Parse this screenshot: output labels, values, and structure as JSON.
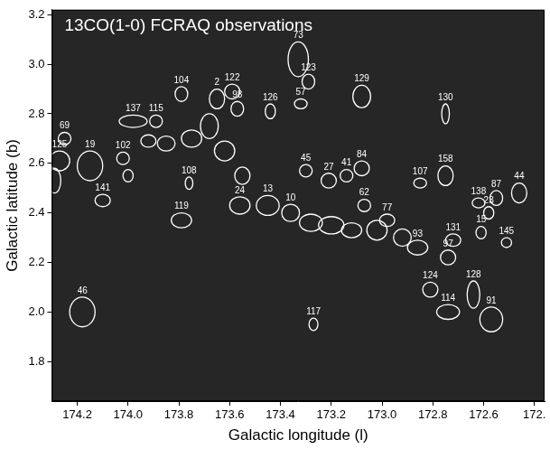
{
  "chart_data": {
    "type": "scatter",
    "title": "13CO(1-0) FCRAQ observations",
    "x_label": "Galactic longitude (l)",
    "y_label": "Galactic latitude (b)",
    "xlim": [
      174.3,
      172.36
    ],
    "xticks": [
      174.2,
      {
        "value": 174,
        "label": "174.0"
      },
      173.8,
      173.6,
      173.4,
      173.2,
      {
        "value": 173,
        "label": "173.0"
      },
      172.8,
      172.6,
      {
        "value": 172.4,
        "label": "172."
      }
    ],
    "ylim": [
      1.64,
      3.22
    ],
    "yticks": [
      1.8,
      {
        "value": 2,
        "label": "2.0"
      },
      2.2,
      2.4,
      2.6,
      2.8,
      {
        "value": 3,
        "label": "3.0"
      },
      3.2
    ],
    "grid": false,
    "marker": "ellipse",
    "color": "#ffffff",
    "points": [
      {
        "label": "46",
        "x": 174.18,
        "y": 2.0,
        "width": 0.1,
        "height": 0.12
      },
      {
        "label": "117",
        "x": 173.27,
        "y": 1.95,
        "width": 0.035,
        "height": 0.05
      },
      {
        "label": "114",
        "x": 172.74,
        "y": 2.0,
        "width": 0.09,
        "height": 0.06
      },
      {
        "label": "91",
        "x": 172.57,
        "y": 1.97,
        "width": 0.09,
        "height": 0.1
      },
      {
        "label": "128",
        "x": 172.64,
        "y": 2.07,
        "width": 0.05,
        "height": 0.11
      },
      {
        "label": "124",
        "x": 172.81,
        "y": 2.09,
        "width": 0.06,
        "height": 0.06
      },
      {
        "label": "145",
        "x": 172.51,
        "y": 2.28,
        "width": 0.04,
        "height": 0.04
      },
      {
        "label": "119",
        "x": 173.79,
        "y": 2.37,
        "width": 0.08,
        "height": 0.06
      },
      {
        "label": "141",
        "x": 174.1,
        "y": 2.45,
        "width": 0.06,
        "height": 0.05
      },
      {
        "label": "129",
        "x": 173.08,
        "y": 2.87,
        "width": 0.07,
        "height": 0.09
      },
      {
        "label": "130",
        "x": 172.75,
        "y": 2.8,
        "width": 0.03,
        "height": 0.08
      },
      {
        "label": "73",
        "x": 173.33,
        "y": 3.02,
        "width": 0.08,
        "height": 0.14
      },
      {
        "label": "123",
        "x": 173.29,
        "y": 2.93,
        "width": 0.05,
        "height": 0.06
      },
      {
        "label": "57",
        "x": 173.32,
        "y": 2.84,
        "width": 0.05,
        "height": 0.04
      },
      {
        "label": "126",
        "x": 173.44,
        "y": 2.81,
        "width": 0.04,
        "height": 0.06
      },
      {
        "label": "137",
        "x": 173.98,
        "y": 2.77,
        "width": 0.11,
        "height": 0.05
      },
      {
        "label": "115",
        "x": 173.89,
        "y": 2.77,
        "width": 0.05,
        "height": 0.05
      },
      {
        "label": "104",
        "x": 173.79,
        "y": 2.88,
        "width": 0.05,
        "height": 0.06
      },
      {
        "label": "2",
        "x": 173.65,
        "y": 2.86,
        "width": 0.06,
        "height": 0.08
      },
      {
        "label": "122",
        "x": 173.59,
        "y": 2.89,
        "width": 0.06,
        "height": 0.06
      },
      {
        "label": "98",
        "x": 173.57,
        "y": 2.82,
        "width": 0.05,
        "height": 0.06
      },
      {
        "label": "125",
        "x": 174.27,
        "y": 2.61,
        "width": 0.08,
        "height": 0.08
      },
      {
        "label": "69",
        "x": 174.25,
        "y": 2.7,
        "width": 0.05,
        "height": 0.05
      },
      {
        "label": "19",
        "x": 174.15,
        "y": 2.59,
        "width": 0.1,
        "height": 0.12
      },
      {
        "label": "102",
        "x": 174.02,
        "y": 2.62,
        "width": 0.05,
        "height": 0.05
      },
      {
        "label": "108",
        "x": 173.76,
        "y": 2.52,
        "width": 0.03,
        "height": 0.05
      },
      {
        "x": 173.92,
        "y": 2.69,
        "width": 0.06,
        "height": 0.05
      },
      {
        "x": 173.85,
        "y": 2.68,
        "width": 0.07,
        "height": 0.06
      },
      {
        "x": 173.75,
        "y": 2.7,
        "width": 0.08,
        "height": 0.07
      },
      {
        "x": 173.68,
        "y": 2.75,
        "width": 0.07,
        "height": 0.1
      },
      {
        "x": 173.62,
        "y": 2.65,
        "width": 0.08,
        "height": 0.08
      },
      {
        "x": 173.55,
        "y": 2.55,
        "width": 0.06,
        "height": 0.07
      },
      {
        "x": 174.29,
        "y": 2.53,
        "width": 0.05,
        "height": 0.1
      },
      {
        "x": 174.0,
        "y": 2.55,
        "width": 0.04,
        "height": 0.05
      },
      {
        "label": "24",
        "x": 173.56,
        "y": 2.43,
        "width": 0.08,
        "height": 0.07
      },
      {
        "label": "13",
        "x": 173.45,
        "y": 2.43,
        "width": 0.09,
        "height": 0.08
      },
      {
        "label": "10",
        "x": 173.36,
        "y": 2.4,
        "width": 0.07,
        "height": 0.07
      },
      {
        "x": 173.28,
        "y": 2.36,
        "width": 0.09,
        "height": 0.07
      },
      {
        "x": 173.2,
        "y": 2.35,
        "width": 0.1,
        "height": 0.07
      },
      {
        "x": 173.12,
        "y": 2.33,
        "width": 0.08,
        "height": 0.06
      },
      {
        "x": 173.02,
        "y": 2.33,
        "width": 0.08,
        "height": 0.08
      },
      {
        "x": 172.92,
        "y": 2.3,
        "width": 0.07,
        "height": 0.07
      },
      {
        "label": "45",
        "x": 173.3,
        "y": 2.57,
        "width": 0.05,
        "height": 0.05
      },
      {
        "label": "27",
        "x": 173.21,
        "y": 2.53,
        "width": 0.06,
        "height": 0.06
      },
      {
        "label": "41",
        "x": 173.14,
        "y": 2.55,
        "width": 0.05,
        "height": 0.05
      },
      {
        "label": "84",
        "x": 173.08,
        "y": 2.58,
        "width": 0.06,
        "height": 0.06
      },
      {
        "label": "77",
        "x": 172.98,
        "y": 2.37,
        "width": 0.06,
        "height": 0.05
      },
      {
        "label": "62",
        "x": 173.07,
        "y": 2.43,
        "width": 0.05,
        "height": 0.05
      },
      {
        "label": "93",
        "x": 172.86,
        "y": 2.26,
        "width": 0.08,
        "height": 0.06
      },
      {
        "label": "131",
        "x": 172.72,
        "y": 2.29,
        "width": 0.06,
        "height": 0.05
      },
      {
        "label": "97",
        "x": 172.74,
        "y": 2.22,
        "width": 0.06,
        "height": 0.06
      },
      {
        "label": "107",
        "x": 172.85,
        "y": 2.52,
        "width": 0.05,
        "height": 0.04
      },
      {
        "label": "158",
        "x": 172.75,
        "y": 2.55,
        "width": 0.06,
        "height": 0.08
      },
      {
        "label": "138",
        "x": 172.62,
        "y": 2.44,
        "width": 0.05,
        "height": 0.04
      },
      {
        "label": "87",
        "x": 172.55,
        "y": 2.46,
        "width": 0.05,
        "height": 0.06
      },
      {
        "label": "44",
        "x": 172.46,
        "y": 2.48,
        "width": 0.06,
        "height": 0.08
      },
      {
        "label": "23",
        "x": 172.58,
        "y": 2.4,
        "width": 0.04,
        "height": 0.05
      },
      {
        "label": "15",
        "x": 172.61,
        "y": 2.32,
        "width": 0.04,
        "height": 0.05
      }
    ]
  }
}
